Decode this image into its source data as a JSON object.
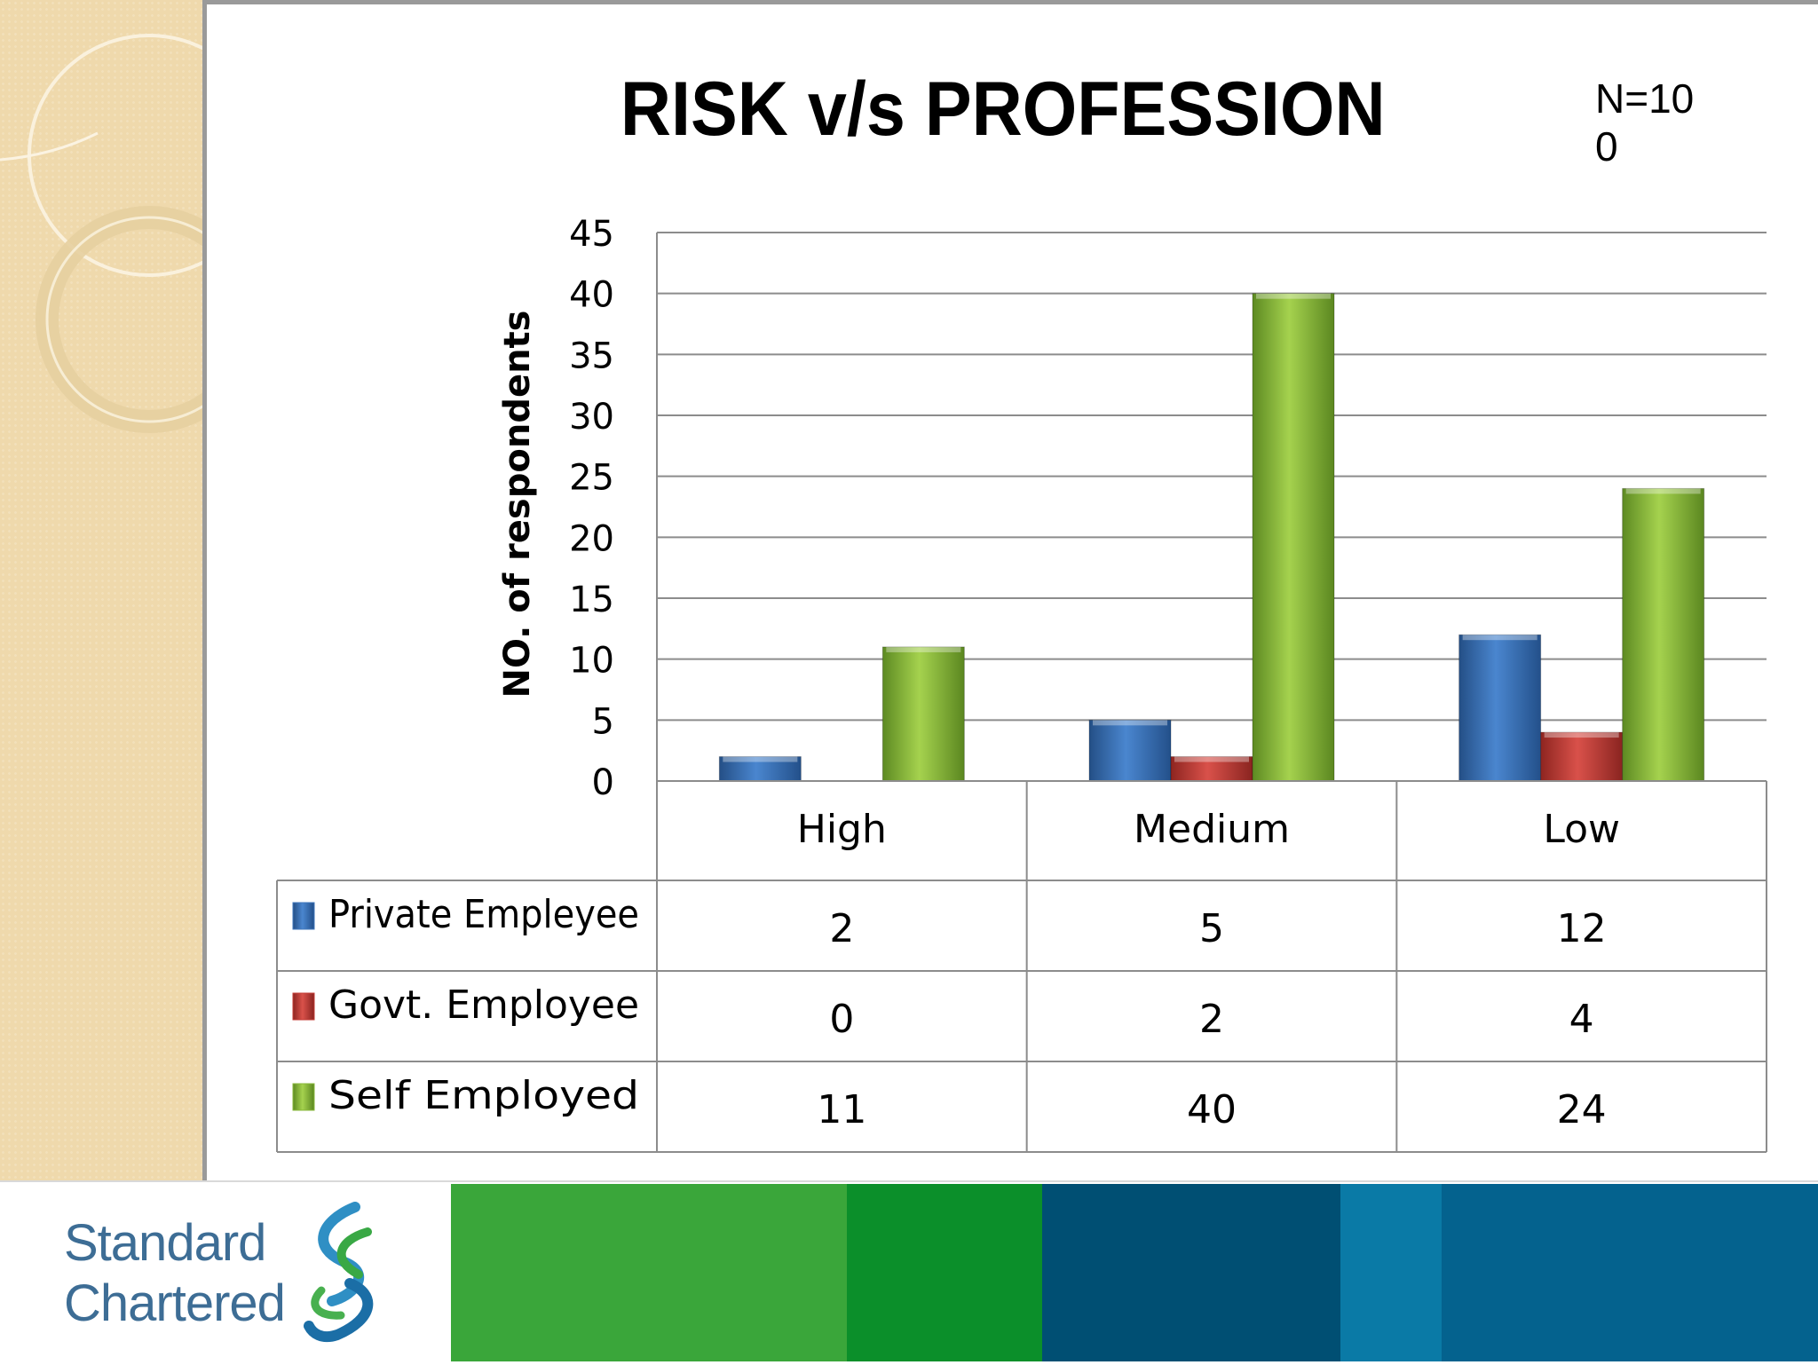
{
  "chart_data": {
    "type": "bar",
    "title": "RISK v/s PROFESSION",
    "annotation": "N=100",
    "ylabel": "NO. of respondents",
    "xlabel": "",
    "ylim": [
      0,
      45
    ],
    "yticks": [
      0,
      5,
      10,
      15,
      20,
      25,
      30,
      35,
      40,
      45
    ],
    "grid": true,
    "legend": "data-table",
    "categories": [
      "High",
      "Medium",
      "Low"
    ],
    "series": [
      {
        "name": "Private Empleyee",
        "values": [
          2,
          5,
          12
        ],
        "color": "#3f77bc"
      },
      {
        "name": "Govt. Employee",
        "values": [
          0,
          2,
          4
        ],
        "color": "#c43b35"
      },
      {
        "name": "Self Employed",
        "values": [
          11,
          40,
          24
        ],
        "color": "#8ab83c"
      }
    ]
  },
  "footer": {
    "logo_line1": "Standard",
    "logo_line2": "Chartered",
    "logo_icon": "standard-chartered-swirl-icon",
    "band_colors": [
      "#3aa63a",
      "#0b8f2a",
      "#004f73",
      "#0a7aa6",
      "#04628e"
    ]
  }
}
